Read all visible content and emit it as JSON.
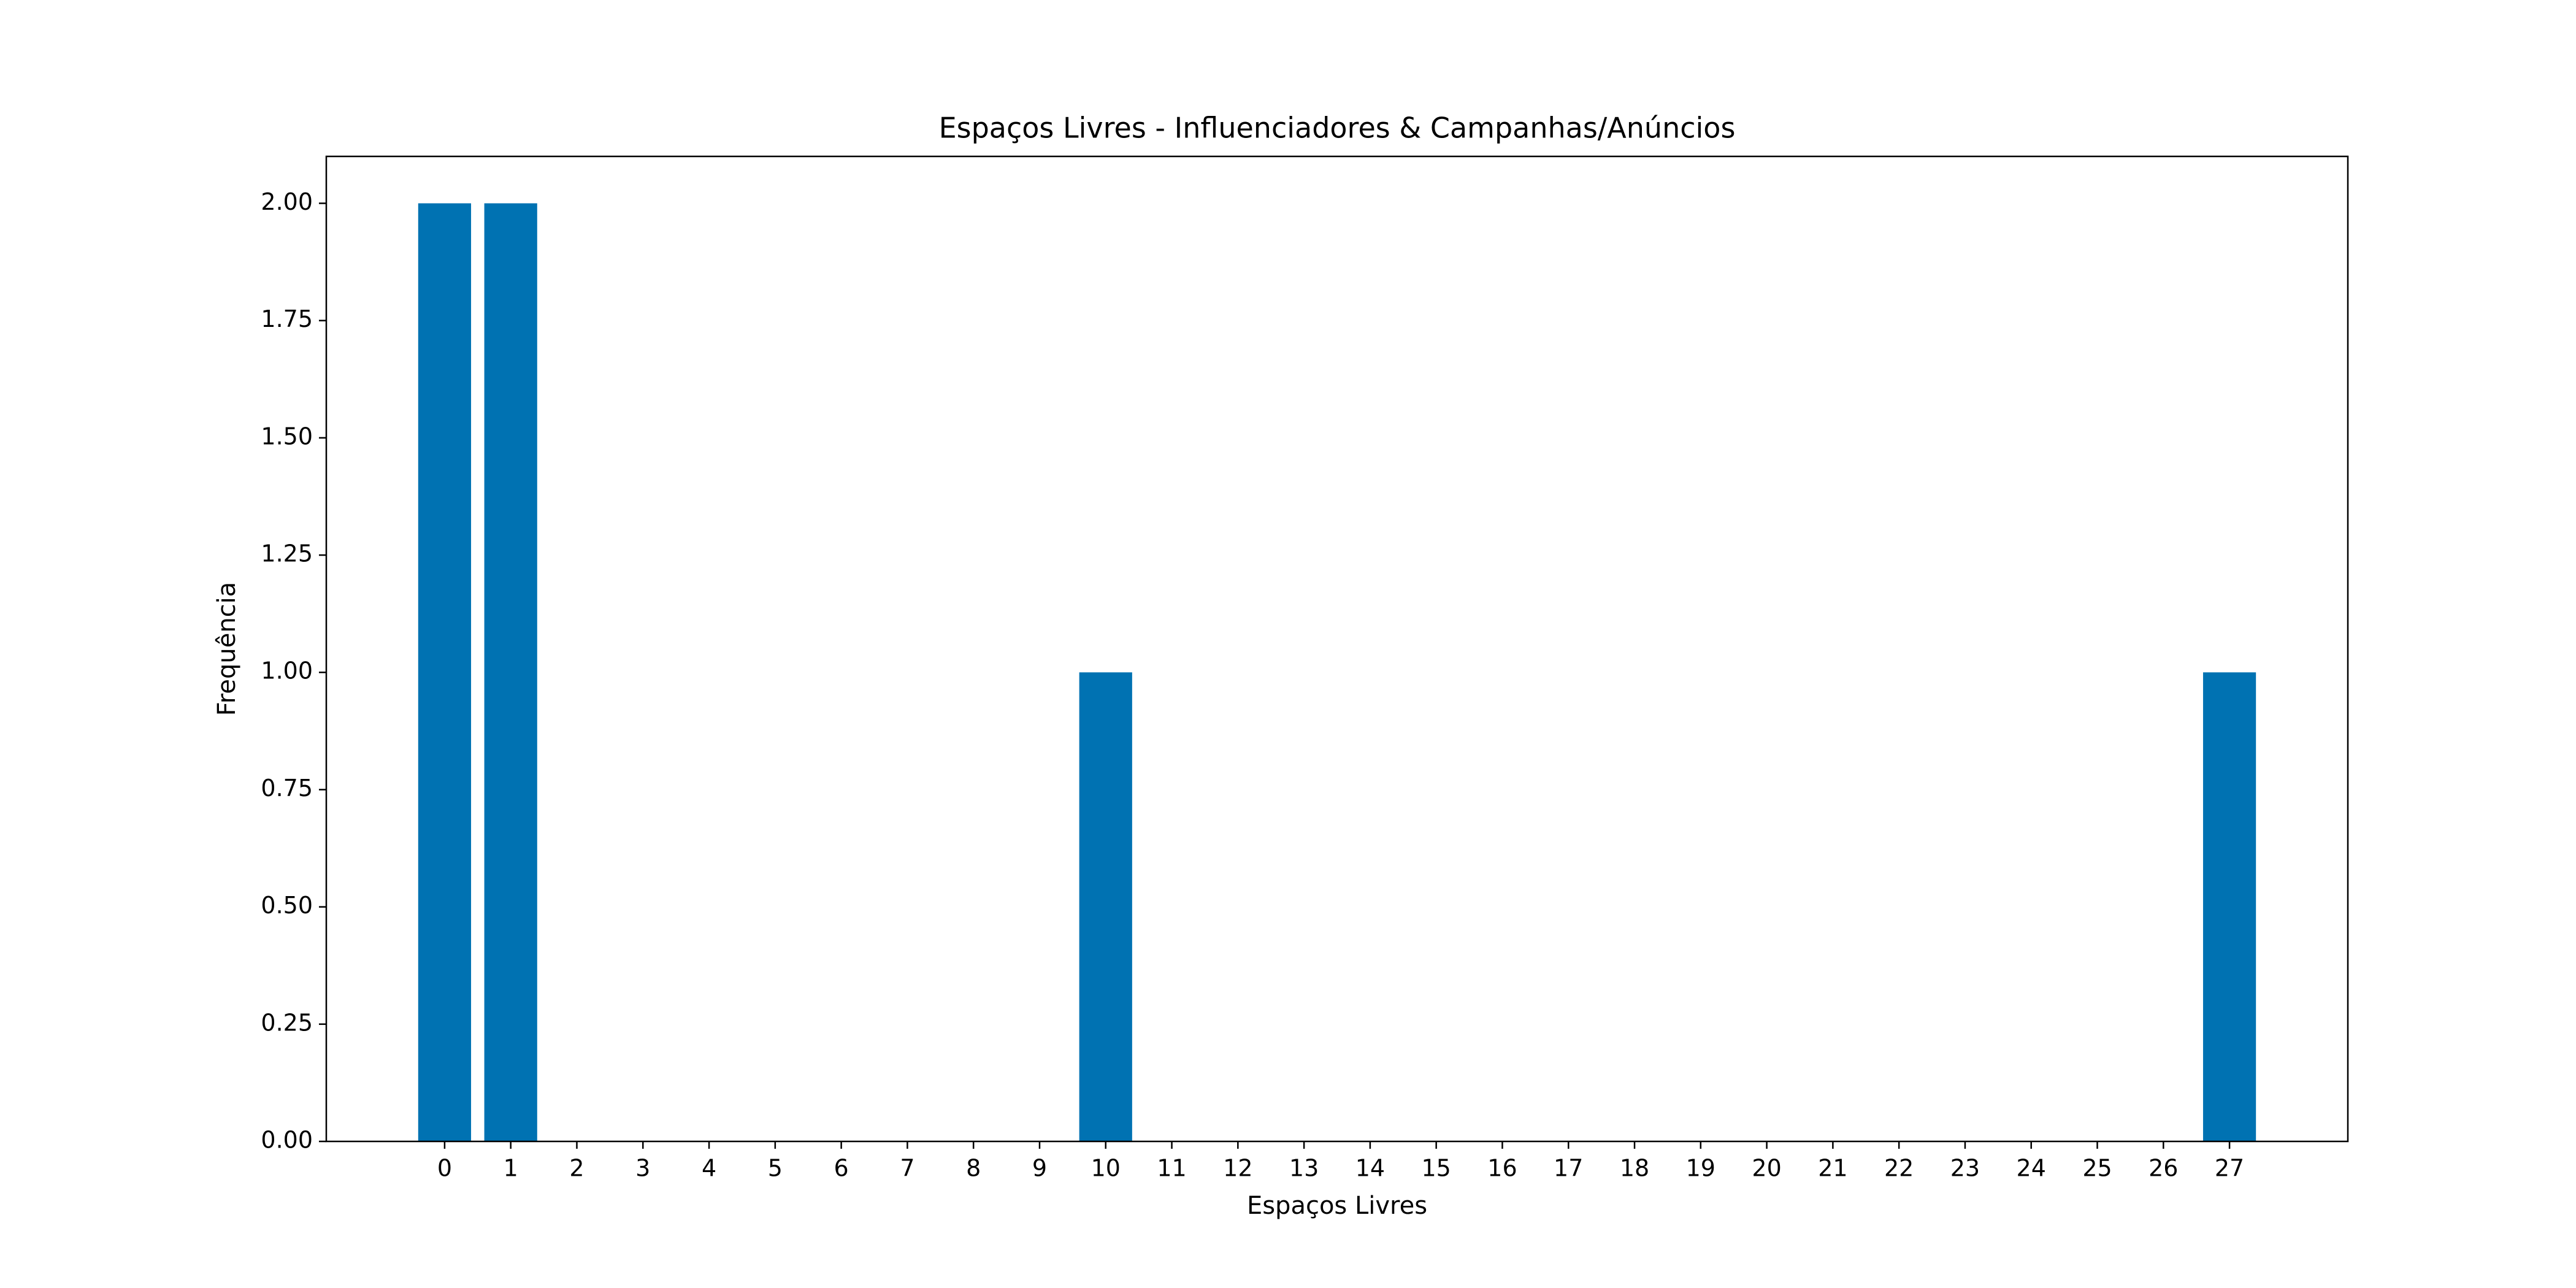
{
  "chart_data": {
    "type": "bar",
    "title": "Espaços Livres - Influenciadores & Campanhas/Anúncios",
    "xlabel": "Espaços Livres",
    "ylabel": "Frequência",
    "x": [
      0,
      1,
      2,
      3,
      4,
      5,
      6,
      7,
      8,
      9,
      10,
      11,
      12,
      13,
      14,
      15,
      16,
      17,
      18,
      19,
      20,
      21,
      22,
      23,
      24,
      25,
      26,
      27
    ],
    "values": [
      2,
      2,
      0,
      0,
      0,
      0,
      0,
      0,
      0,
      0,
      1,
      0,
      0,
      0,
      0,
      0,
      0,
      0,
      0,
      0,
      0,
      0,
      0,
      0,
      0,
      0,
      0,
      1
    ],
    "color": "#0072b2",
    "xlim": [
      -1.79,
      28.79
    ],
    "ylim": [
      0,
      2.1
    ],
    "xticks": [
      0,
      1,
      2,
      3,
      4,
      5,
      6,
      7,
      8,
      9,
      10,
      11,
      12,
      13,
      14,
      15,
      16,
      17,
      18,
      19,
      20,
      21,
      22,
      23,
      24,
      25,
      26,
      27
    ],
    "yticks": [
      {
        "value": 0,
        "label": "0.00"
      },
      {
        "value": 0.25,
        "label": "0.25"
      },
      {
        "value": 0.5,
        "label": "0.50"
      },
      {
        "value": 0.75,
        "label": "0.75"
      },
      {
        "value": 1,
        "label": "1.00"
      },
      {
        "value": 1.25,
        "label": "1.25"
      },
      {
        "value": 1.5,
        "label": "1.50"
      },
      {
        "value": 1.75,
        "label": "1.75"
      },
      {
        "value": 2,
        "label": "2.00"
      }
    ],
    "grid": false
  }
}
